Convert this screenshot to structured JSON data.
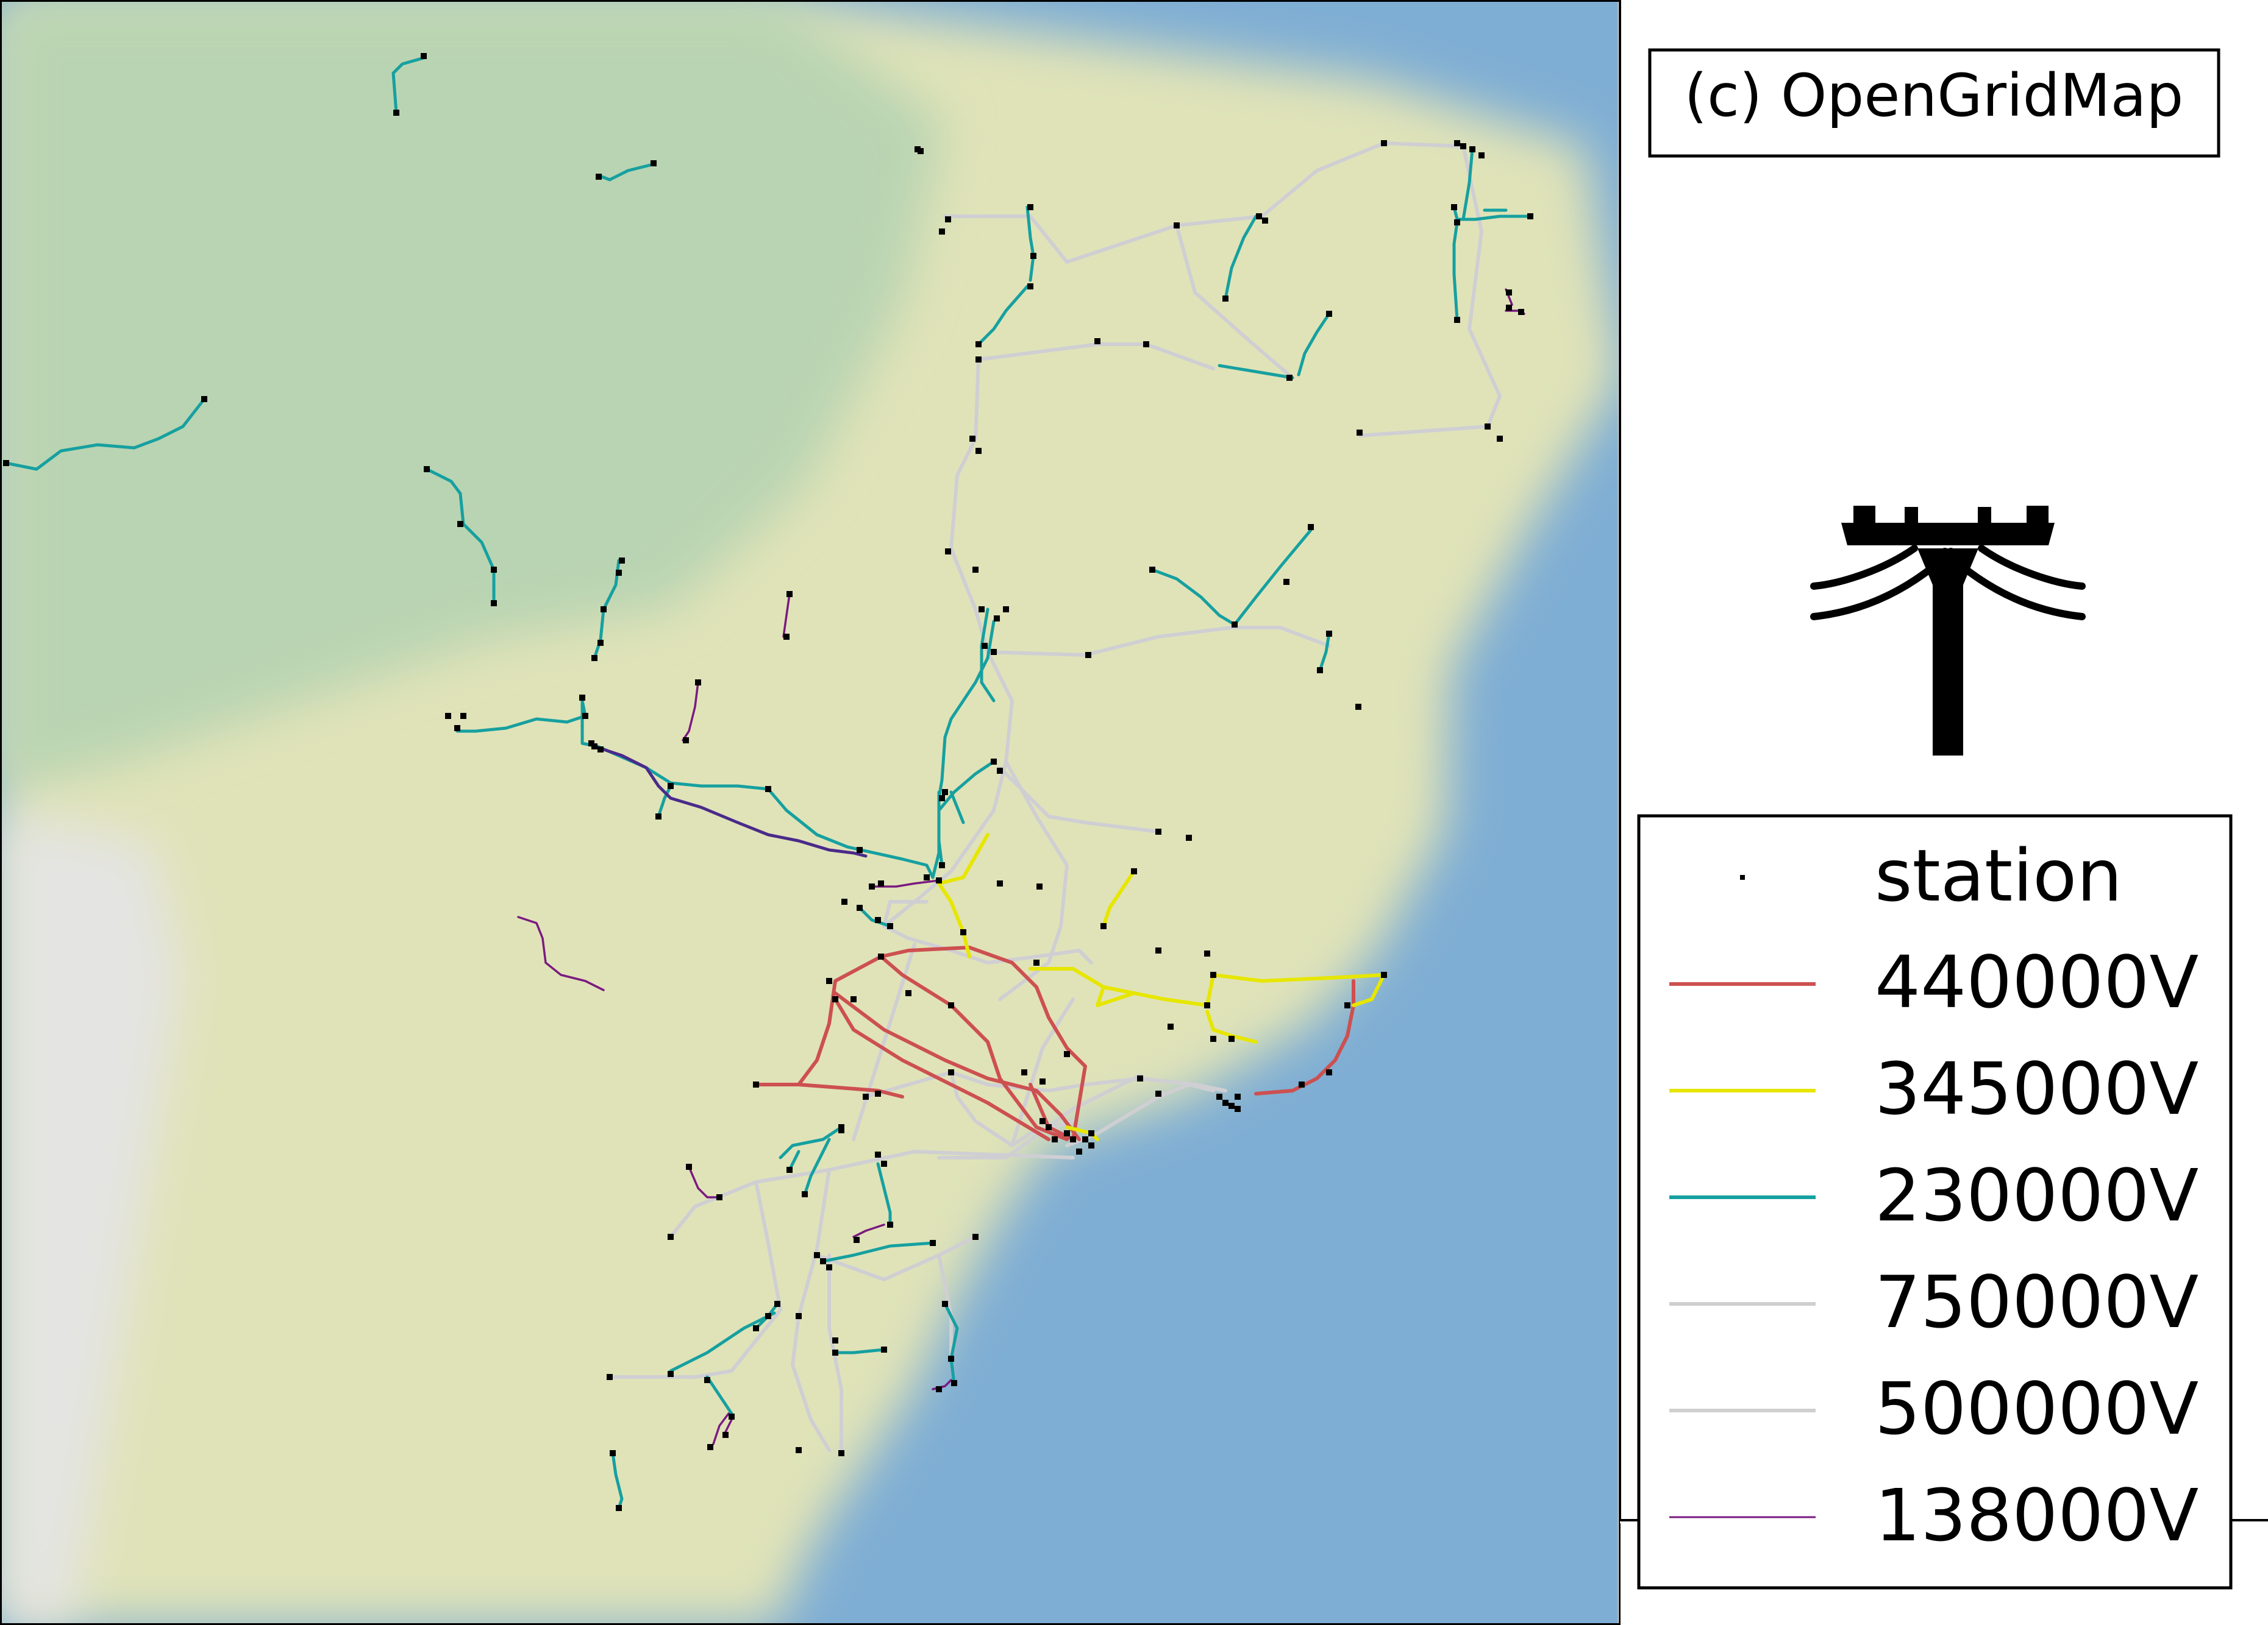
{
  "attribution": "(c) OpenGridMap",
  "legend": {
    "entries": [
      {
        "label": "station",
        "kind": "marker",
        "color": "#000000"
      },
      {
        "label": "440000V",
        "kind": "line",
        "color": "#cd5050"
      },
      {
        "label": "345000V",
        "kind": "line",
        "color": "#e6e600"
      },
      {
        "label": "230000V",
        "kind": "line",
        "color": "#16a0a0"
      },
      {
        "label": "750000V",
        "kind": "line",
        "color": "#cfcfcf"
      },
      {
        "label": "500000V",
        "kind": "line",
        "color": "#d0d0d0"
      },
      {
        "label": "138000V",
        "kind": "line",
        "color": "#7a1a80"
      }
    ]
  },
  "icons": {
    "logo": "power-pole-icon"
  },
  "colors": {
    "land": "#e0e3b8",
    "forest": "#b7d3b0",
    "ocean": "#7faed4",
    "mountain": "#e6e6e6",
    "panel": "#ffffff"
  }
}
